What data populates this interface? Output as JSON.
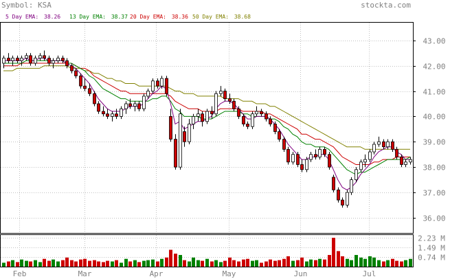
{
  "header": {
    "symbol_label": "Symbol: KSA",
    "site": "stockta.com"
  },
  "legend": [
    {
      "label": "5 Day EMA:",
      "value": "38.26",
      "color": "#800080"
    },
    {
      "label": "13 Day EMA:",
      "value": "38.37",
      "color": "#008000"
    },
    {
      "label": "20 Day EMA:",
      "value": "38.36",
      "color": "#cc0000"
    },
    {
      "label": "50 Day EMA:",
      "value": "38.68",
      "color": "#808000"
    }
  ],
  "colors": {
    "up": "#ffffff",
    "down": "#cc0000",
    "vol_up": "#008000",
    "vol_down": "#cc0000",
    "grid": "#c0c0c0",
    "text": "#808080"
  },
  "chart_data": {
    "type": "candlestick",
    "x_tick_labels": [
      "Feb",
      "Mar",
      "Apr",
      "May",
      "Jun",
      "Jul"
    ],
    "price_axis": {
      "ticks": [
        "43.00",
        "42.00",
        "41.00",
        "40.00",
        "39.00",
        "38.00",
        "37.00",
        "36.00"
      ],
      "range": [
        35.4,
        43.7
      ]
    },
    "volume_axis": {
      "ticks": [
        "2.23 M",
        "1.49 M",
        "0.74 M"
      ],
      "range": [
        0,
        2.23
      ]
    },
    "series_names": [
      "5 Day EMA",
      "13 Day EMA",
      "20 Day EMA",
      "50 Day EMA"
    ],
    "ohlc": [
      [
        42.1,
        42.4,
        41.9,
        42.3
      ],
      [
        42.3,
        42.5,
        42.1,
        42.2
      ],
      [
        42.2,
        42.4,
        42.0,
        42.3
      ],
      [
        42.3,
        42.4,
        42.1,
        42.2
      ],
      [
        42.2,
        42.4,
        42.0,
        42.3
      ],
      [
        42.3,
        42.5,
        42.2,
        42.4
      ],
      [
        42.4,
        42.5,
        42.0,
        42.1
      ],
      [
        42.1,
        42.4,
        42.0,
        42.3
      ],
      [
        42.3,
        42.5,
        42.2,
        42.4
      ],
      [
        42.4,
        42.6,
        42.2,
        42.3
      ],
      [
        42.3,
        42.4,
        42.0,
        42.1
      ],
      [
        42.1,
        42.3,
        41.9,
        42.2
      ],
      [
        42.2,
        42.4,
        42.1,
        42.3
      ],
      [
        42.3,
        42.4,
        42.1,
        42.2
      ],
      [
        42.2,
        42.3,
        41.9,
        42.0
      ],
      [
        42.0,
        42.1,
        41.7,
        41.8
      ],
      [
        41.8,
        41.9,
        41.5,
        41.6
      ],
      [
        41.6,
        41.7,
        41.1,
        41.2
      ],
      [
        41.2,
        41.5,
        41.0,
        41.1
      ],
      [
        41.1,
        41.3,
        40.8,
        40.9
      ],
      [
        40.9,
        41.0,
        40.4,
        40.5
      ],
      [
        40.5,
        40.6,
        40.1,
        40.2
      ],
      [
        40.2,
        40.4,
        40.0,
        40.1
      ],
      [
        40.1,
        40.3,
        39.9,
        40.0
      ],
      [
        40.0,
        40.2,
        39.8,
        40.1
      ],
      [
        40.1,
        40.3,
        39.9,
        40.0
      ],
      [
        40.0,
        40.4,
        39.9,
        40.3
      ],
      [
        40.3,
        40.6,
        40.1,
        40.5
      ],
      [
        40.5,
        40.7,
        40.3,
        40.4
      ],
      [
        40.4,
        40.6,
        40.2,
        40.5
      ],
      [
        40.5,
        40.6,
        40.2,
        40.3
      ],
      [
        40.3,
        40.9,
        40.2,
        40.8
      ],
      [
        40.8,
        41.1,
        40.7,
        41.0
      ],
      [
        41.0,
        41.5,
        40.9,
        41.4
      ],
      [
        41.4,
        41.5,
        41.1,
        41.2
      ],
      [
        41.2,
        41.6,
        41.1,
        41.5
      ],
      [
        41.5,
        41.6,
        40.8,
        40.9
      ],
      [
        40.0,
        40.3,
        39.0,
        39.1
      ],
      [
        39.1,
        39.3,
        37.9,
        38.0
      ],
      [
        38.0,
        40.3,
        37.9,
        40.1
      ],
      [
        39.4,
        39.6,
        38.8,
        39.0
      ],
      [
        39.0,
        39.9,
        38.9,
        39.7
      ],
      [
        39.7,
        40.1,
        39.5,
        40.0
      ],
      [
        40.0,
        40.3,
        39.8,
        40.1
      ],
      [
        40.1,
        40.2,
        39.6,
        39.8
      ],
      [
        39.8,
        40.3,
        39.7,
        40.2
      ],
      [
        40.2,
        40.4,
        39.9,
        40.1
      ],
      [
        40.1,
        41.0,
        40.0,
        40.9
      ],
      [
        40.9,
        41.2,
        40.8,
        41.0
      ],
      [
        41.0,
        41.1,
        40.6,
        40.7
      ],
      [
        40.7,
        40.9,
        40.5,
        40.6
      ],
      [
        40.6,
        40.7,
        40.2,
        40.3
      ],
      [
        40.3,
        40.4,
        39.9,
        40.0
      ],
      [
        40.0,
        40.1,
        39.6,
        39.7
      ],
      [
        39.7,
        39.8,
        39.5,
        39.6
      ],
      [
        39.6,
        40.2,
        39.5,
        40.1
      ],
      [
        40.1,
        40.4,
        40.0,
        40.2
      ],
      [
        40.2,
        40.3,
        40.0,
        40.1
      ],
      [
        40.1,
        40.2,
        39.8,
        39.9
      ],
      [
        39.9,
        40.0,
        39.6,
        39.7
      ],
      [
        39.7,
        39.8,
        39.3,
        39.4
      ],
      [
        39.4,
        39.5,
        39.0,
        39.1
      ],
      [
        39.1,
        39.2,
        38.6,
        38.7
      ],
      [
        38.7,
        38.8,
        38.1,
        38.2
      ],
      [
        38.2,
        38.6,
        38.1,
        38.5
      ],
      [
        38.5,
        38.6,
        38.0,
        38.1
      ],
      [
        38.1,
        38.3,
        37.8,
        37.9
      ],
      [
        37.9,
        38.4,
        37.8,
        38.3
      ],
      [
        38.3,
        38.6,
        38.2,
        38.5
      ],
      [
        38.5,
        38.7,
        38.3,
        38.4
      ],
      [
        38.4,
        38.8,
        38.3,
        38.7
      ],
      [
        38.7,
        38.8,
        38.4,
        38.5
      ],
      [
        38.5,
        38.6,
        37.9,
        38.0
      ],
      [
        37.6,
        37.7,
        37.0,
        37.1
      ],
      [
        37.1,
        37.2,
        36.6,
        36.7
      ],
      [
        36.7,
        36.8,
        36.4,
        36.5
      ],
      [
        36.5,
        37.1,
        36.4,
        37.0
      ],
      [
        37.0,
        37.6,
        36.9,
        37.5
      ],
      [
        37.5,
        38.0,
        37.4,
        37.9
      ],
      [
        37.9,
        38.3,
        37.8,
        38.2
      ],
      [
        38.2,
        38.5,
        38.0,
        38.3
      ],
      [
        38.3,
        38.7,
        38.2,
        38.6
      ],
      [
        38.6,
        39.0,
        38.5,
        38.9
      ],
      [
        38.9,
        39.2,
        38.8,
        39.0
      ],
      [
        39.0,
        39.1,
        38.7,
        38.8
      ],
      [
        38.8,
        39.1,
        38.7,
        39.0
      ],
      [
        39.0,
        39.1,
        38.6,
        38.7
      ],
      [
        38.7,
        38.8,
        38.3,
        38.4
      ],
      [
        38.4,
        38.5,
        38.0,
        38.1
      ],
      [
        38.1,
        38.3,
        38.0,
        38.2
      ],
      [
        38.2,
        38.4,
        38.1,
        38.3
      ]
    ],
    "ema5": [
      42.2,
      42.2,
      42.2,
      42.2,
      42.2,
      42.3,
      42.2,
      42.2,
      42.3,
      42.3,
      42.2,
      42.2,
      42.2,
      42.2,
      42.1,
      42.0,
      41.9,
      41.7,
      41.5,
      41.3,
      41.0,
      40.7,
      40.5,
      40.3,
      40.2,
      40.2,
      40.2,
      40.3,
      40.4,
      40.4,
      40.4,
      40.5,
      40.7,
      40.9,
      41.0,
      41.2,
      41.1,
      40.5,
      39.7,
      39.8,
      39.5,
      39.6,
      39.7,
      39.8,
      39.8,
      39.9,
      40.0,
      40.3,
      40.5,
      40.6,
      40.6,
      40.5,
      40.3,
      40.1,
      39.9,
      39.9,
      40.0,
      40.0,
      40.0,
      39.9,
      39.7,
      39.5,
      39.2,
      38.9,
      38.7,
      38.5,
      38.3,
      38.3,
      38.4,
      38.4,
      38.5,
      38.5,
      38.3,
      37.9,
      37.5,
      37.2,
      37.1,
      37.2,
      37.4,
      37.7,
      37.9,
      38.1,
      38.4,
      38.6,
      38.7,
      38.8,
      38.8,
      38.6,
      38.5,
      38.3,
      38.3
    ],
    "ema13": [
      42.1,
      42.1,
      42.1,
      42.1,
      42.1,
      42.2,
      42.2,
      42.2,
      42.2,
      42.2,
      42.2,
      42.2,
      42.2,
      42.2,
      42.1,
      42.1,
      42.0,
      41.9,
      41.8,
      41.6,
      41.5,
      41.3,
      41.1,
      41.0,
      40.9,
      40.8,
      40.7,
      40.7,
      40.6,
      40.6,
      40.6,
      40.6,
      40.6,
      40.7,
      40.7,
      40.8,
      40.8,
      40.6,
      40.3,
      40.2,
      40.0,
      40.0,
      40.0,
      40.0,
      39.9,
      39.9,
      39.9,
      40.0,
      40.1,
      40.2,
      40.2,
      40.2,
      40.2,
      40.1,
      40.1,
      40.0,
      40.0,
      40.0,
      40.0,
      39.9,
      39.9,
      39.8,
      39.6,
      39.5,
      39.3,
      39.2,
      39.0,
      38.9,
      38.9,
      38.8,
      38.8,
      38.8,
      38.7,
      38.5,
      38.3,
      38.1,
      37.9,
      37.8,
      37.7,
      37.8,
      37.8,
      37.9,
      38.0,
      38.1,
      38.2,
      38.3,
      38.3,
      38.3,
      38.3,
      38.3,
      38.4
    ],
    "ema20": [
      42.0,
      42.0,
      42.0,
      42.0,
      42.1,
      42.1,
      42.1,
      42.1,
      42.1,
      42.1,
      42.1,
      42.1,
      42.1,
      42.1,
      42.1,
      42.1,
      42.0,
      41.9,
      41.9,
      41.8,
      41.6,
      41.5,
      41.4,
      41.3,
      41.2,
      41.1,
      41.0,
      41.0,
      40.9,
      40.9,
      40.9,
      40.9,
      40.9,
      40.9,
      40.9,
      40.9,
      40.9,
      40.8,
      40.6,
      40.5,
      40.4,
      40.3,
      40.3,
      40.3,
      40.2,
      40.2,
      40.2,
      40.2,
      40.3,
      40.3,
      40.3,
      40.3,
      40.3,
      40.2,
      40.2,
      40.2,
      40.2,
      40.2,
      40.1,
      40.1,
      40.0,
      39.9,
      39.8,
      39.7,
      39.6,
      39.5,
      39.3,
      39.3,
      39.2,
      39.1,
      39.1,
      39.0,
      38.9,
      38.8,
      38.6,
      38.4,
      38.3,
      38.2,
      38.1,
      38.1,
      38.1,
      38.1,
      38.2,
      38.2,
      38.3,
      38.3,
      38.3,
      38.4,
      38.4,
      38.4,
      38.4
    ],
    "ema50": [
      41.8,
      41.8,
      41.8,
      41.9,
      41.9,
      41.9,
      41.9,
      41.9,
      41.9,
      42.0,
      42.0,
      42.0,
      42.0,
      42.0,
      42.0,
      41.9,
      41.9,
      41.9,
      41.8,
      41.8,
      41.7,
      41.7,
      41.6,
      41.5,
      41.5,
      41.4,
      41.4,
      41.3,
      41.3,
      41.3,
      41.2,
      41.2,
      41.2,
      41.2,
      41.2,
      41.2,
      41.2,
      41.1,
      41.0,
      41.0,
      40.9,
      40.9,
      40.9,
      40.8,
      40.8,
      40.8,
      40.8,
      40.8,
      40.8,
      40.7,
      40.7,
      40.7,
      40.7,
      40.6,
      40.6,
      40.6,
      40.5,
      40.5,
      40.5,
      40.4,
      40.4,
      40.3,
      40.2,
      40.1,
      40.0,
      39.9,
      39.8,
      39.7,
      39.6,
      39.5,
      39.4,
      39.3,
      39.2,
      39.1,
      39.0,
      38.9,
      38.8,
      38.8,
      38.8,
      38.8,
      38.7,
      38.7,
      38.7,
      38.7,
      38.7,
      38.7,
      38.7,
      38.7,
      38.7,
      38.7,
      38.7
    ],
    "volume": [
      0.3,
      0.4,
      0.5,
      0.35,
      0.55,
      0.45,
      0.4,
      0.5,
      0.35,
      0.6,
      0.45,
      0.55,
      0.4,
      0.5,
      0.7,
      0.5,
      0.4,
      0.55,
      0.6,
      0.45,
      0.5,
      0.4,
      0.35,
      0.45,
      0.4,
      0.5,
      0.3,
      0.6,
      0.4,
      0.5,
      0.35,
      0.45,
      0.5,
      0.55,
      0.4,
      0.6,
      0.7,
      1.3,
      1.0,
      0.9,
      0.5,
      0.4,
      0.7,
      0.5,
      0.45,
      0.6,
      0.4,
      0.5,
      0.35,
      0.45,
      0.7,
      0.5,
      0.4,
      0.55,
      0.6,
      0.45,
      0.5,
      0.3,
      0.4,
      0.55,
      0.45,
      0.5,
      0.6,
      0.8,
      0.45,
      0.5,
      0.7,
      0.4,
      0.55,
      0.5,
      0.6,
      0.55,
      0.9,
      2.23,
      1.2,
      0.8,
      0.6,
      0.5,
      0.9,
      0.7,
      0.6,
      0.8,
      0.7,
      0.5,
      0.4,
      0.5,
      0.6,
      0.45,
      0.4,
      0.5,
      0.6
    ]
  }
}
